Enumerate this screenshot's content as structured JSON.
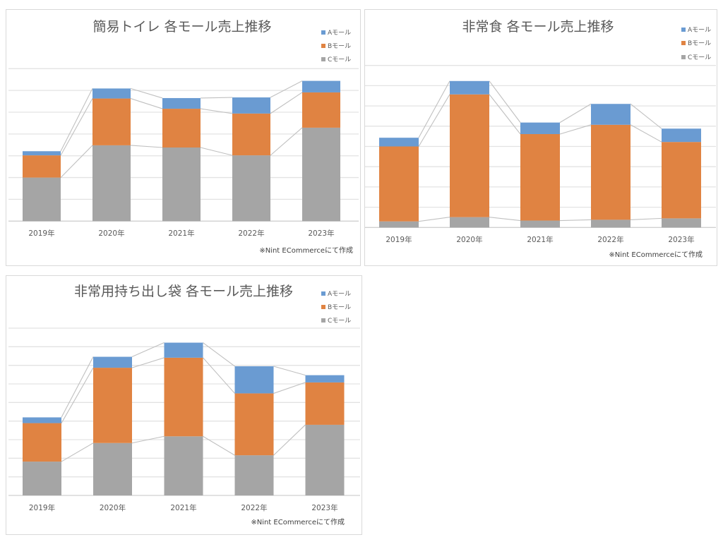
{
  "colors": {
    "A": "#6a9bd2",
    "B": "#e08342",
    "C": "#a5a5a5",
    "connector": "#c0c0c0",
    "grid": "#e3e3e3"
  },
  "chart_data": [
    {
      "type": "bar",
      "stacked": true,
      "title": "簡易トイレ 各モール売上推移",
      "categories": [
        "2019年",
        "2020年",
        "2021年",
        "2022年",
        "2023年"
      ],
      "series": [
        {
          "name": "Cモール",
          "key": "C",
          "values": [
            2.0,
            3.48,
            3.38,
            3.02,
            4.29
          ]
        },
        {
          "name": "Bモール",
          "key": "B",
          "values": [
            1.02,
            2.15,
            1.78,
            1.92,
            1.62
          ]
        },
        {
          "name": "Aモール",
          "key": "A",
          "values": [
            0.19,
            0.46,
            0.49,
            0.74,
            0.53
          ]
        }
      ],
      "ylim": [
        0,
        7
      ],
      "y_units": "gridline intervals (no axis labels shown)",
      "grid": true,
      "legend": [
        "Aモール",
        "Bモール",
        "Cモール"
      ],
      "legend_position": "top-right",
      "footnote": "※Nint ECommerceにて作成"
    },
    {
      "type": "bar",
      "stacked": true,
      "title": "非常食 各モール売上推移",
      "categories": [
        "2019年",
        "2020年",
        "2021年",
        "2022年",
        "2023年"
      ],
      "series": [
        {
          "name": "Cモール",
          "key": "C",
          "values": [
            0.3,
            0.51,
            0.34,
            0.38,
            0.45
          ]
        },
        {
          "name": "Bモール",
          "key": "B",
          "values": [
            3.7,
            6.06,
            4.27,
            4.69,
            3.77
          ]
        },
        {
          "name": "Aモール",
          "key": "A",
          "values": [
            0.43,
            0.66,
            0.57,
            1.03,
            0.66
          ]
        }
      ],
      "ylim": [
        0,
        8
      ],
      "y_units": "gridline intervals (no axis labels shown)",
      "grid": true,
      "legend": [
        "Aモール",
        "Bモール",
        "Cモール"
      ],
      "legend_position": "top-right",
      "footnote": "※Nint ECommerceにて作成"
    },
    {
      "type": "bar",
      "stacked": true,
      "title": "非常用持ち出し袋 各モール売上推移",
      "categories": [
        "2019年",
        "2020年",
        "2021年",
        "2022年",
        "2023年"
      ],
      "series": [
        {
          "name": "Cモール",
          "key": "C",
          "values": [
            1.82,
            2.82,
            3.18,
            2.16,
            3.8
          ]
        },
        {
          "name": "Bモール",
          "key": "B",
          "values": [
            2.07,
            4.05,
            4.23,
            3.33,
            2.28
          ]
        },
        {
          "name": "Aモール",
          "key": "A",
          "values": [
            0.31,
            0.59,
            0.81,
            1.46,
            0.39
          ]
        }
      ],
      "ylim": [
        0,
        9
      ],
      "y_units": "gridline intervals (no axis labels shown)",
      "grid": true,
      "legend": [
        "Aモール",
        "Bモール",
        "Cモール"
      ],
      "legend_position": "top-right",
      "footnote": "※Nint ECommerceにて作成"
    }
  ]
}
